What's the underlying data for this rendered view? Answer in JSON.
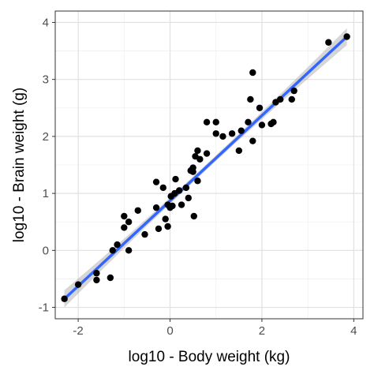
{
  "chart_data": {
    "type": "scatter",
    "title": "",
    "xlabel": "log10 - Body weight (kg)",
    "ylabel": "log10 - Brain weight (g)",
    "xlim": [
      -2.5,
      4.2
    ],
    "ylim": [
      -1.2,
      4.2
    ],
    "x_ticks": [
      -2,
      0,
      2,
      4
    ],
    "y_ticks": [
      -1,
      0,
      1,
      2,
      3,
      4
    ],
    "grid": true,
    "legend": "none",
    "points": [
      [
        -2.3,
        -0.85
      ],
      [
        -2.0,
        -0.6
      ],
      [
        -1.6,
        -0.4
      ],
      [
        -1.6,
        -0.52
      ],
      [
        -1.3,
        -0.48
      ],
      [
        -1.25,
        0.0
      ],
      [
        -1.15,
        0.1
      ],
      [
        -1.0,
        0.6
      ],
      [
        -1.0,
        0.4
      ],
      [
        -0.9,
        0.5
      ],
      [
        -0.9,
        0.0
      ],
      [
        -0.7,
        0.7
      ],
      [
        -0.55,
        0.28
      ],
      [
        -0.3,
        0.75
      ],
      [
        -0.3,
        1.2
      ],
      [
        -0.25,
        0.38
      ],
      [
        -0.15,
        1.1
      ],
      [
        -0.1,
        0.55
      ],
      [
        -0.05,
        0.8
      ],
      [
        -0.05,
        0.42
      ],
      [
        0.0,
        0.75
      ],
      [
        0.02,
        0.95
      ],
      [
        0.05,
        0.78
      ],
      [
        0.1,
        1.0
      ],
      [
        0.12,
        1.25
      ],
      [
        0.2,
        1.05
      ],
      [
        0.25,
        0.8
      ],
      [
        0.35,
        1.1
      ],
      [
        0.4,
        0.92
      ],
      [
        0.45,
        1.4
      ],
      [
        0.5,
        1.45
      ],
      [
        0.5,
        1.38
      ],
      [
        0.52,
        0.6
      ],
      [
        0.55,
        1.65
      ],
      [
        0.6,
        1.75
      ],
      [
        0.6,
        1.22
      ],
      [
        0.65,
        1.6
      ],
      [
        0.8,
        2.25
      ],
      [
        0.8,
        1.7
      ],
      [
        1.0,
        2.25
      ],
      [
        1.0,
        2.05
      ],
      [
        1.15,
        2.0
      ],
      [
        1.35,
        2.05
      ],
      [
        1.5,
        1.75
      ],
      [
        1.55,
        2.1
      ],
      [
        1.7,
        2.25
      ],
      [
        1.75,
        2.65
      ],
      [
        1.8,
        1.92
      ],
      [
        1.8,
        3.12
      ],
      [
        1.95,
        2.5
      ],
      [
        2.0,
        2.2
      ],
      [
        2.2,
        2.22
      ],
      [
        2.25,
        2.25
      ],
      [
        2.3,
        2.6
      ],
      [
        2.4,
        2.65
      ],
      [
        2.65,
        2.65
      ],
      [
        2.7,
        2.8
      ],
      [
        3.45,
        3.65
      ],
      [
        3.85,
        3.75
      ]
    ],
    "regression_line": {
      "x": [
        -2.3,
        3.85
      ],
      "y": [
        -0.85,
        3.75
      ],
      "color": "#3366ff"
    },
    "confidence_band": {
      "color": "#999999"
    },
    "point_color": "#000000"
  }
}
